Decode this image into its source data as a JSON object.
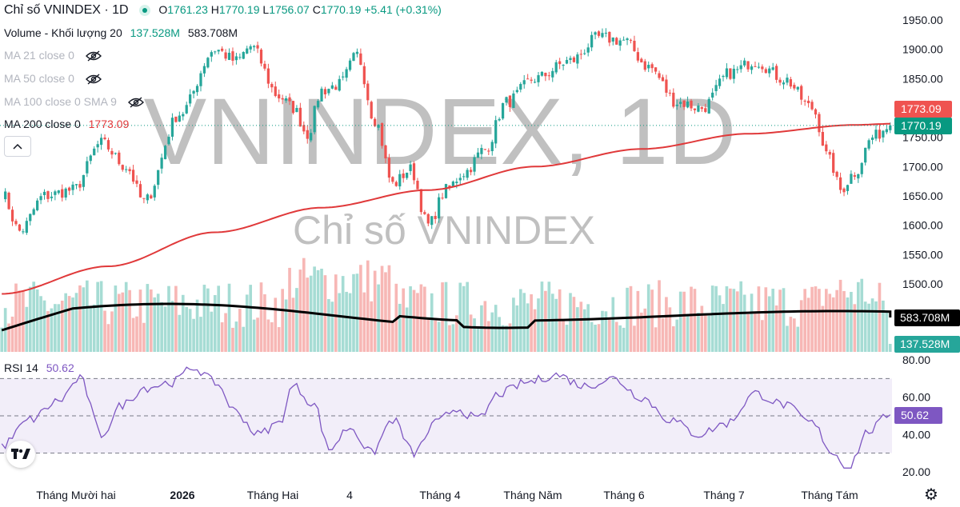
{
  "header": {
    "title": "Chỉ số VNINDEX · 1D",
    "ohlc": {
      "o_label": "O",
      "o": "1761.23",
      "h_label": "H",
      "h": "1770.19",
      "l_label": "L",
      "l": "1756.07",
      "c_label": "C",
      "c": "1770.19",
      "change": "+5.41 (+0.31%)"
    },
    "volume_label": "Volume - Khối lượng 20",
    "volume_value": "137.528M",
    "volume_ma_value": "583.708M",
    "ma21": "MA 21 close 0",
    "ma50": "MA 50 close 0",
    "ma100": "MA 100 close 0 SMA 9",
    "ma200": "MA 200 close 0",
    "ma200_value": "1773.09",
    "collapse_icon": "chevron-up-icon"
  },
  "watermark": {
    "big": "VNINDEX, 1D",
    "small": "Chỉ số VNINDEX"
  },
  "rsi": {
    "label": "RSI 14",
    "value": "50.62"
  },
  "colors": {
    "up": "#26a69a",
    "down": "#ef5350",
    "ma200": "#e0393a",
    "rsi": "#7e57c2",
    "rsi_bg": "#ede7f6",
    "vol_ma": "#000000"
  },
  "chart_data": {
    "type": "candlestick",
    "price_axis": {
      "ticks": [
        1500,
        1550,
        1600,
        1650,
        1700,
        1750,
        1800,
        1850,
        1900,
        1950
      ],
      "tick_labels": [
        "1500.00",
        "1550.00",
        "1600.00",
        "1650.00",
        "1700.00",
        "1750.00",
        "1800.00",
        "1850.00",
        "1900.00",
        "1950.00"
      ]
    },
    "rsi_axis": {
      "ticks": [
        20,
        40,
        60,
        80
      ],
      "tick_labels": [
        "20.00",
        "40.00",
        "60.00",
        "80.00"
      ],
      "bands": [
        30,
        50,
        70
      ]
    },
    "x_tick_labels": [
      "Tháng Mười hai",
      "2026",
      "Tháng Hai",
      "4",
      "Tháng 4",
      "Tháng Năm",
      "Tháng 6",
      "Tháng 7",
      "Tháng Tám"
    ],
    "last_close": 1770.19,
    "ma200_last": 1773.09,
    "volume_last": "137.528M",
    "volume_ma_last": "583.708M",
    "rsi_last": 50.62,
    "close_anchors": [
      [
        0,
        1655
      ],
      [
        5,
        1590
      ],
      [
        12,
        1650
      ],
      [
        20,
        1660
      ],
      [
        28,
        1740
      ],
      [
        35,
        1700
      ],
      [
        40,
        1640
      ],
      [
        50,
        1790
      ],
      [
        60,
        1900
      ],
      [
        66,
        1880
      ],
      [
        70,
        1905
      ],
      [
        78,
        1820
      ],
      [
        82,
        1800
      ],
      [
        86,
        1755
      ],
      [
        90,
        1830
      ],
      [
        95,
        1840
      ],
      [
        100,
        1890
      ],
      [
        105,
        1780
      ],
      [
        110,
        1670
      ],
      [
        115,
        1695
      ],
      [
        120,
        1600
      ],
      [
        125,
        1660
      ],
      [
        130,
        1690
      ],
      [
        136,
        1730
      ],
      [
        142,
        1810
      ],
      [
        150,
        1850
      ],
      [
        160,
        1880
      ],
      [
        168,
        1920
      ],
      [
        175,
        1915
      ],
      [
        182,
        1870
      ],
      [
        190,
        1810
      ],
      [
        197,
        1800
      ],
      [
        205,
        1860
      ],
      [
        212,
        1880
      ],
      [
        220,
        1850
      ],
      [
        228,
        1800
      ],
      [
        233,
        1710
      ],
      [
        236,
        1660
      ],
      [
        240,
        1690
      ],
      [
        245,
        1750
      ],
      [
        250,
        1770
      ]
    ],
    "ma200_anchors": [
      [
        0,
        1483
      ],
      [
        30,
        1530
      ],
      [
        60,
        1588
      ],
      [
        90,
        1630
      ],
      [
        120,
        1660
      ],
      [
        150,
        1700
      ],
      [
        180,
        1730
      ],
      [
        210,
        1756
      ],
      [
        240,
        1771
      ],
      [
        250,
        1773
      ]
    ],
    "rsi_anchors": [
      [
        0,
        34
      ],
      [
        8,
        48
      ],
      [
        16,
        58
      ],
      [
        22,
        70
      ],
      [
        28,
        40
      ],
      [
        34,
        56
      ],
      [
        40,
        65
      ],
      [
        48,
        68
      ],
      [
        54,
        76
      ],
      [
        60,
        68
      ],
      [
        66,
        52
      ],
      [
        72,
        40
      ],
      [
        78,
        46
      ],
      [
        82,
        66
      ],
      [
        88,
        56
      ],
      [
        92,
        32
      ],
      [
        98,
        44
      ],
      [
        104,
        30
      ],
      [
        110,
        48
      ],
      [
        116,
        30
      ],
      [
        122,
        46
      ],
      [
        128,
        54
      ],
      [
        134,
        48
      ],
      [
        140,
        62
      ],
      [
        148,
        68
      ],
      [
        156,
        72
      ],
      [
        164,
        66
      ],
      [
        172,
        70
      ],
      [
        180,
        60
      ],
      [
        188,
        48
      ],
      [
        196,
        40
      ],
      [
        204,
        46
      ],
      [
        212,
        62
      ],
      [
        220,
        56
      ],
      [
        228,
        46
      ],
      [
        234,
        30
      ],
      [
        238,
        22
      ],
      [
        244,
        42
      ],
      [
        250,
        50.6
      ]
    ]
  }
}
